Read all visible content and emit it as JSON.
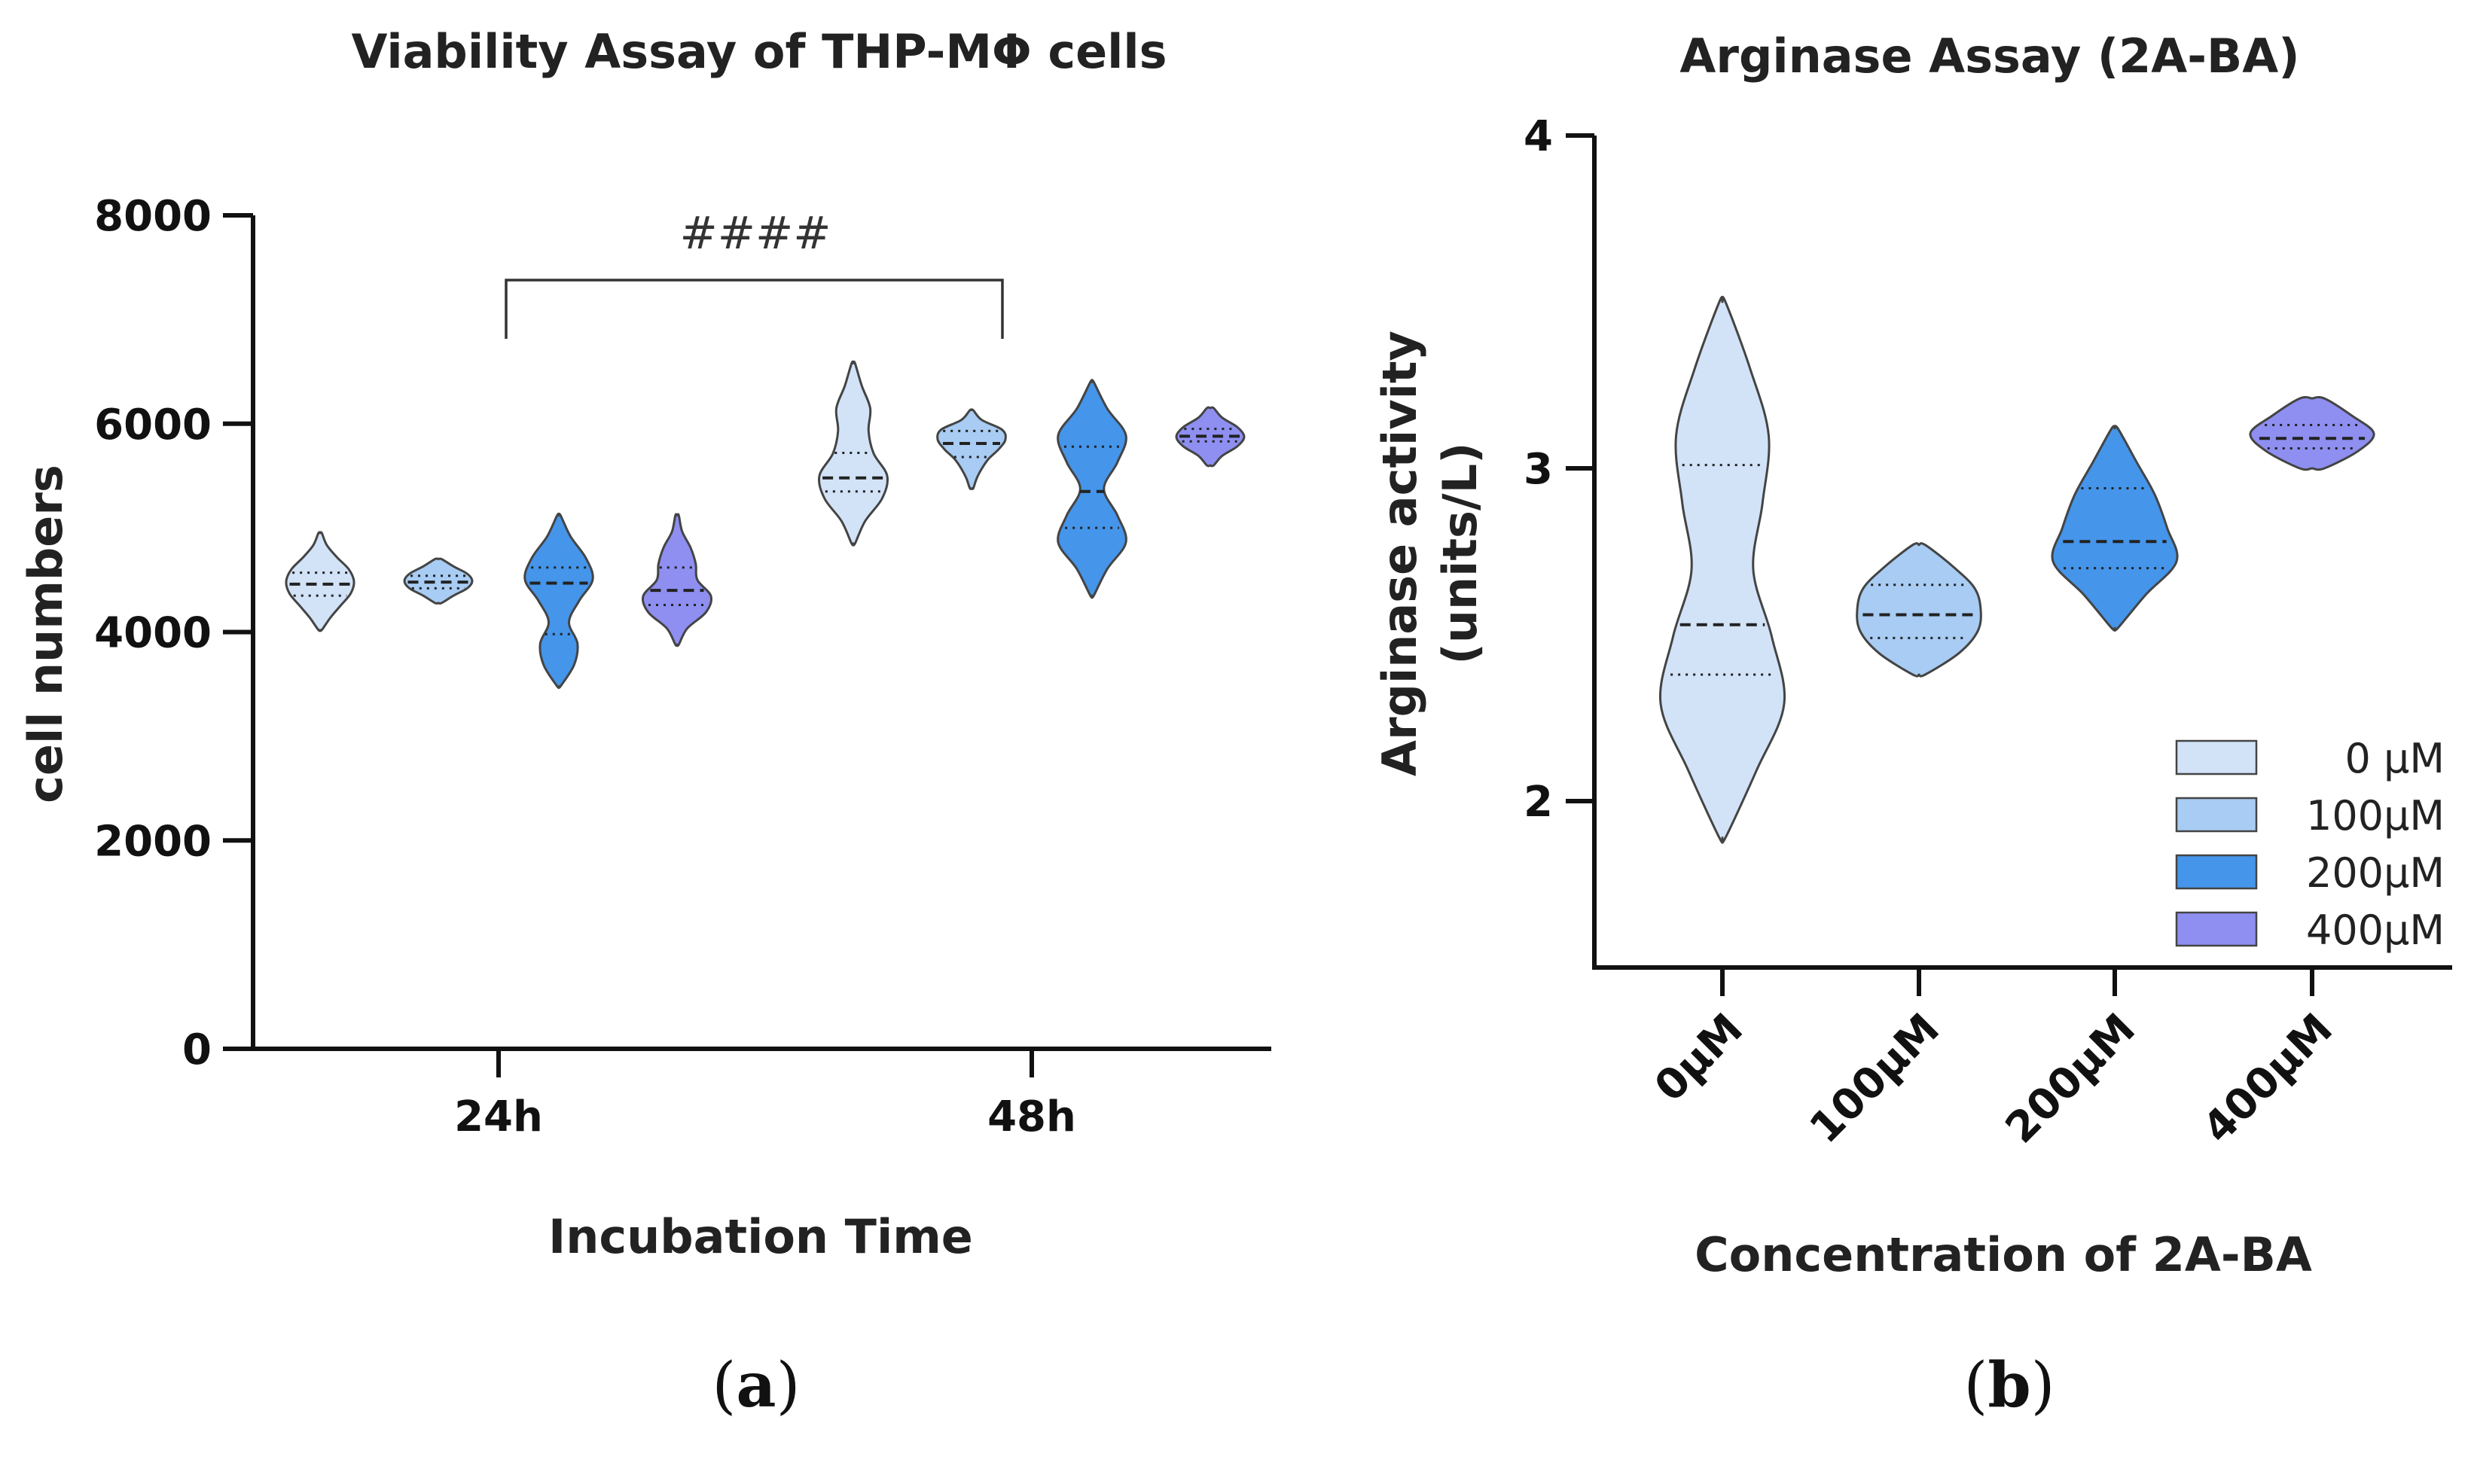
{
  "colors": {
    "c0": "#d2e3f8",
    "c100": "#a8ccf3",
    "c200": "#4595ea",
    "c400": "#8e8ff1",
    "outline": "#444444",
    "axis": "#111111"
  },
  "chart_data": [
    {
      "type": "violin",
      "title": "Viability Assay of THP-MΦ cells",
      "xlabel": "Incubation Time",
      "ylabel": "cell numbers",
      "ylim": [
        0,
        8000
      ],
      "yticks": [
        "0",
        "2000",
        "4000",
        "6000",
        "8000"
      ],
      "categories": [
        "24h",
        "48h"
      ],
      "panel_label": {
        "open": "(",
        "letter": "a",
        "close": ")"
      },
      "significance": {
        "label": "####",
        "between": [
          "24h",
          "48h"
        ]
      },
      "series": [
        {
          "name": "0 µM",
          "color_key": "c0",
          "groups": [
            {
              "category": "24h",
              "median": 4460,
              "q1": 4350,
              "q3": 4570,
              "min": 4020,
              "max": 4950,
              "profile": [
                0.05,
                0.3,
                0.6,
                0.9,
                1,
                0.85,
                0.5,
                0.2,
                0.05
              ]
            },
            {
              "category": "48h",
              "median": 5480,
              "q1": 5350,
              "q3": 5720,
              "min": 4850,
              "max": 6580,
              "profile": [
                0.05,
                0.35,
                0.85,
                1,
                0.6,
                0.45,
                0.5,
                0.25,
                0.05
              ]
            }
          ]
        },
        {
          "name": "100µM",
          "color_key": "c100",
          "groups": [
            {
              "category": "24h",
              "median": 4480,
              "q1": 4420,
              "q3": 4540,
              "min": 4280,
              "max": 4700,
              "profile": [
                0.1,
                0.45,
                0.85,
                1,
                0.85,
                0.45,
                0.1
              ]
            },
            {
              "category": "48h",
              "median": 5810,
              "q1": 5680,
              "q3": 5930,
              "min": 5380,
              "max": 6130,
              "profile": [
                0.05,
                0.15,
                0.3,
                0.5,
                0.8,
                1,
                0.9,
                0.3,
                0.05
              ]
            }
          ]
        },
        {
          "name": "200µM",
          "color_key": "c200",
          "groups": [
            {
              "category": "24h",
              "median": 4470,
              "q1": 3980,
              "q3": 4620,
              "min": 3480,
              "max": 5120,
              "profile": [
                0.05,
                0.45,
                0.55,
                0.3,
                0.6,
                1,
                0.8,
                0.35,
                0.05
              ]
            },
            {
              "category": "48h",
              "median": 5350,
              "q1": 5000,
              "q3": 5780,
              "min": 4350,
              "max": 6400,
              "profile": [
                0.05,
                0.45,
                1,
                0.75,
                0.35,
                0.75,
                1,
                0.45,
                0.05
              ]
            }
          ]
        },
        {
          "name": "400µM",
          "color_key": "c400",
          "groups": [
            {
              "category": "24h",
              "median": 4400,
              "q1": 4260,
              "q3": 4620,
              "min": 3880,
              "max": 5120,
              "profile": [
                0.05,
                0.3,
                0.85,
                1,
                0.6,
                0.55,
                0.4,
                0.15,
                0.05
              ]
            },
            {
              "category": "48h",
              "median": 5880,
              "q1": 5830,
              "q3": 5950,
              "min": 5600,
              "max": 6150,
              "profile": [
                0.1,
                0.35,
                0.8,
                1,
                0.8,
                0.35,
                0.1
              ]
            }
          ]
        }
      ]
    },
    {
      "type": "violin",
      "title": "Arginase Assay (2A-BA)",
      "xlabel": "Concentration of 2A-BA",
      "ylabel_lines": [
        "Arginase activity",
        "(units/L)"
      ],
      "ylim": [
        1.5,
        4
      ],
      "yticks": [
        "2",
        "3",
        "4"
      ],
      "categories": [
        "0µM",
        "100µM",
        "200µM",
        "400µM"
      ],
      "panel_label": {
        "open": "(",
        "letter": "b",
        "close": ")"
      },
      "legend": {
        "position": "bottom-right",
        "entries": [
          {
            "label": "0 µM",
            "color_key": "c0"
          },
          {
            "label": "100µM",
            "color_key": "c100"
          },
          {
            "label": "200µM",
            "color_key": "c200"
          },
          {
            "label": "400µM",
            "color_key": "c400"
          }
        ]
      },
      "groups": [
        {
          "category": "0µM",
          "color_key": "c0",
          "median": 2.53,
          "q1": 2.38,
          "q3": 3.01,
          "min": 1.89,
          "max": 3.5,
          "profile": [
            0.05,
            0.55,
            1,
            0.8,
            0.5,
            0.65,
            0.75,
            0.45,
            0.05
          ]
        },
        {
          "category": "100µM",
          "color_key": "c100",
          "median": 2.56,
          "q1": 2.49,
          "q3": 2.65,
          "min": 2.38,
          "max": 2.77,
          "profile": [
            0.1,
            0.65,
            0.95,
            1,
            0.9,
            0.55,
            0.1
          ]
        },
        {
          "category": "200µM",
          "color_key": "c200",
          "median": 2.78,
          "q1": 2.7,
          "q3": 2.94,
          "min": 2.52,
          "max": 3.12,
          "profile": [
            0.05,
            0.5,
            1,
            0.85,
            0.65,
            0.35,
            0.05
          ]
        },
        {
          "category": "400µM",
          "color_key": "c400",
          "median": 3.09,
          "q1": 3.06,
          "q3": 3.13,
          "min": 3.0,
          "max": 3.21,
          "profile": [
            0.2,
            0.75,
            1,
            0.65,
            0.2
          ]
        }
      ]
    }
  ]
}
